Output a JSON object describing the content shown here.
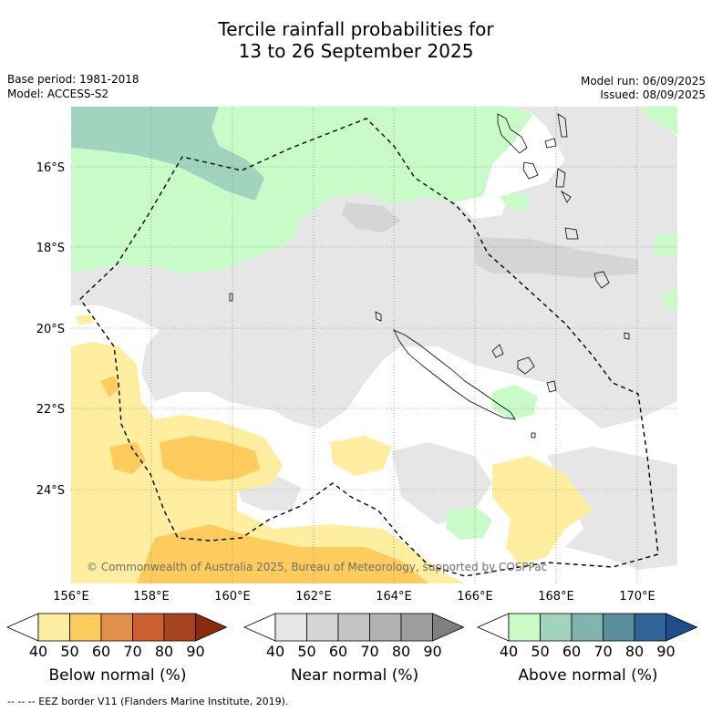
{
  "title_line1": "Tercile rainfall probabilities for",
  "title_line2": "13 to 26 September 2025",
  "base_period": "Base period: 1981-2018",
  "model": "Model: ACCESS-S2",
  "model_run": "Model run: 06/09/2025",
  "issued": "Issued: 08/09/2025",
  "copyright": "© Commonwealth of Australia 2025, Bureau of Meteorology, supported by COSPPac",
  "lon_labels": [
    "156°E",
    "158°E",
    "160°E",
    "162°E",
    "164°E",
    "166°E",
    "168°E",
    "170°E"
  ],
  "lat_labels": [
    "16°S",
    "18°S",
    "20°S",
    "22°S",
    "24°S"
  ],
  "colorbars": [
    {
      "label": "Below normal (%)",
      "ticks": [
        "40",
        "50",
        "60",
        "70",
        "80",
        "90"
      ],
      "colors": [
        "#ffffff",
        "#ffeda0",
        "#fecc5c",
        "#e2914a",
        "#cc6030",
        "#a8431f",
        "#8c2a10"
      ]
    },
    {
      "label": "Near normal (%)",
      "ticks": [
        "40",
        "50",
        "60",
        "70",
        "80",
        "90"
      ],
      "colors": [
        "#ffffff",
        "#e6e6e6",
        "#d5d5d5",
        "#c4c4c4",
        "#b2b2b2",
        "#9e9e9e",
        "#7f7f7f"
      ]
    },
    {
      "label": "Above normal (%)",
      "ticks": [
        "40",
        "50",
        "60",
        "70",
        "80",
        "90"
      ],
      "colors": [
        "#ffffff",
        "#c8fbc8",
        "#a0d4be",
        "#7fb5ae",
        "#5a8f9e",
        "#2f6598",
        "#1d4e8a"
      ]
    }
  ],
  "footer": "--  --  -- EEZ border V11 (Flanders Marine Institute, 2019)."
}
